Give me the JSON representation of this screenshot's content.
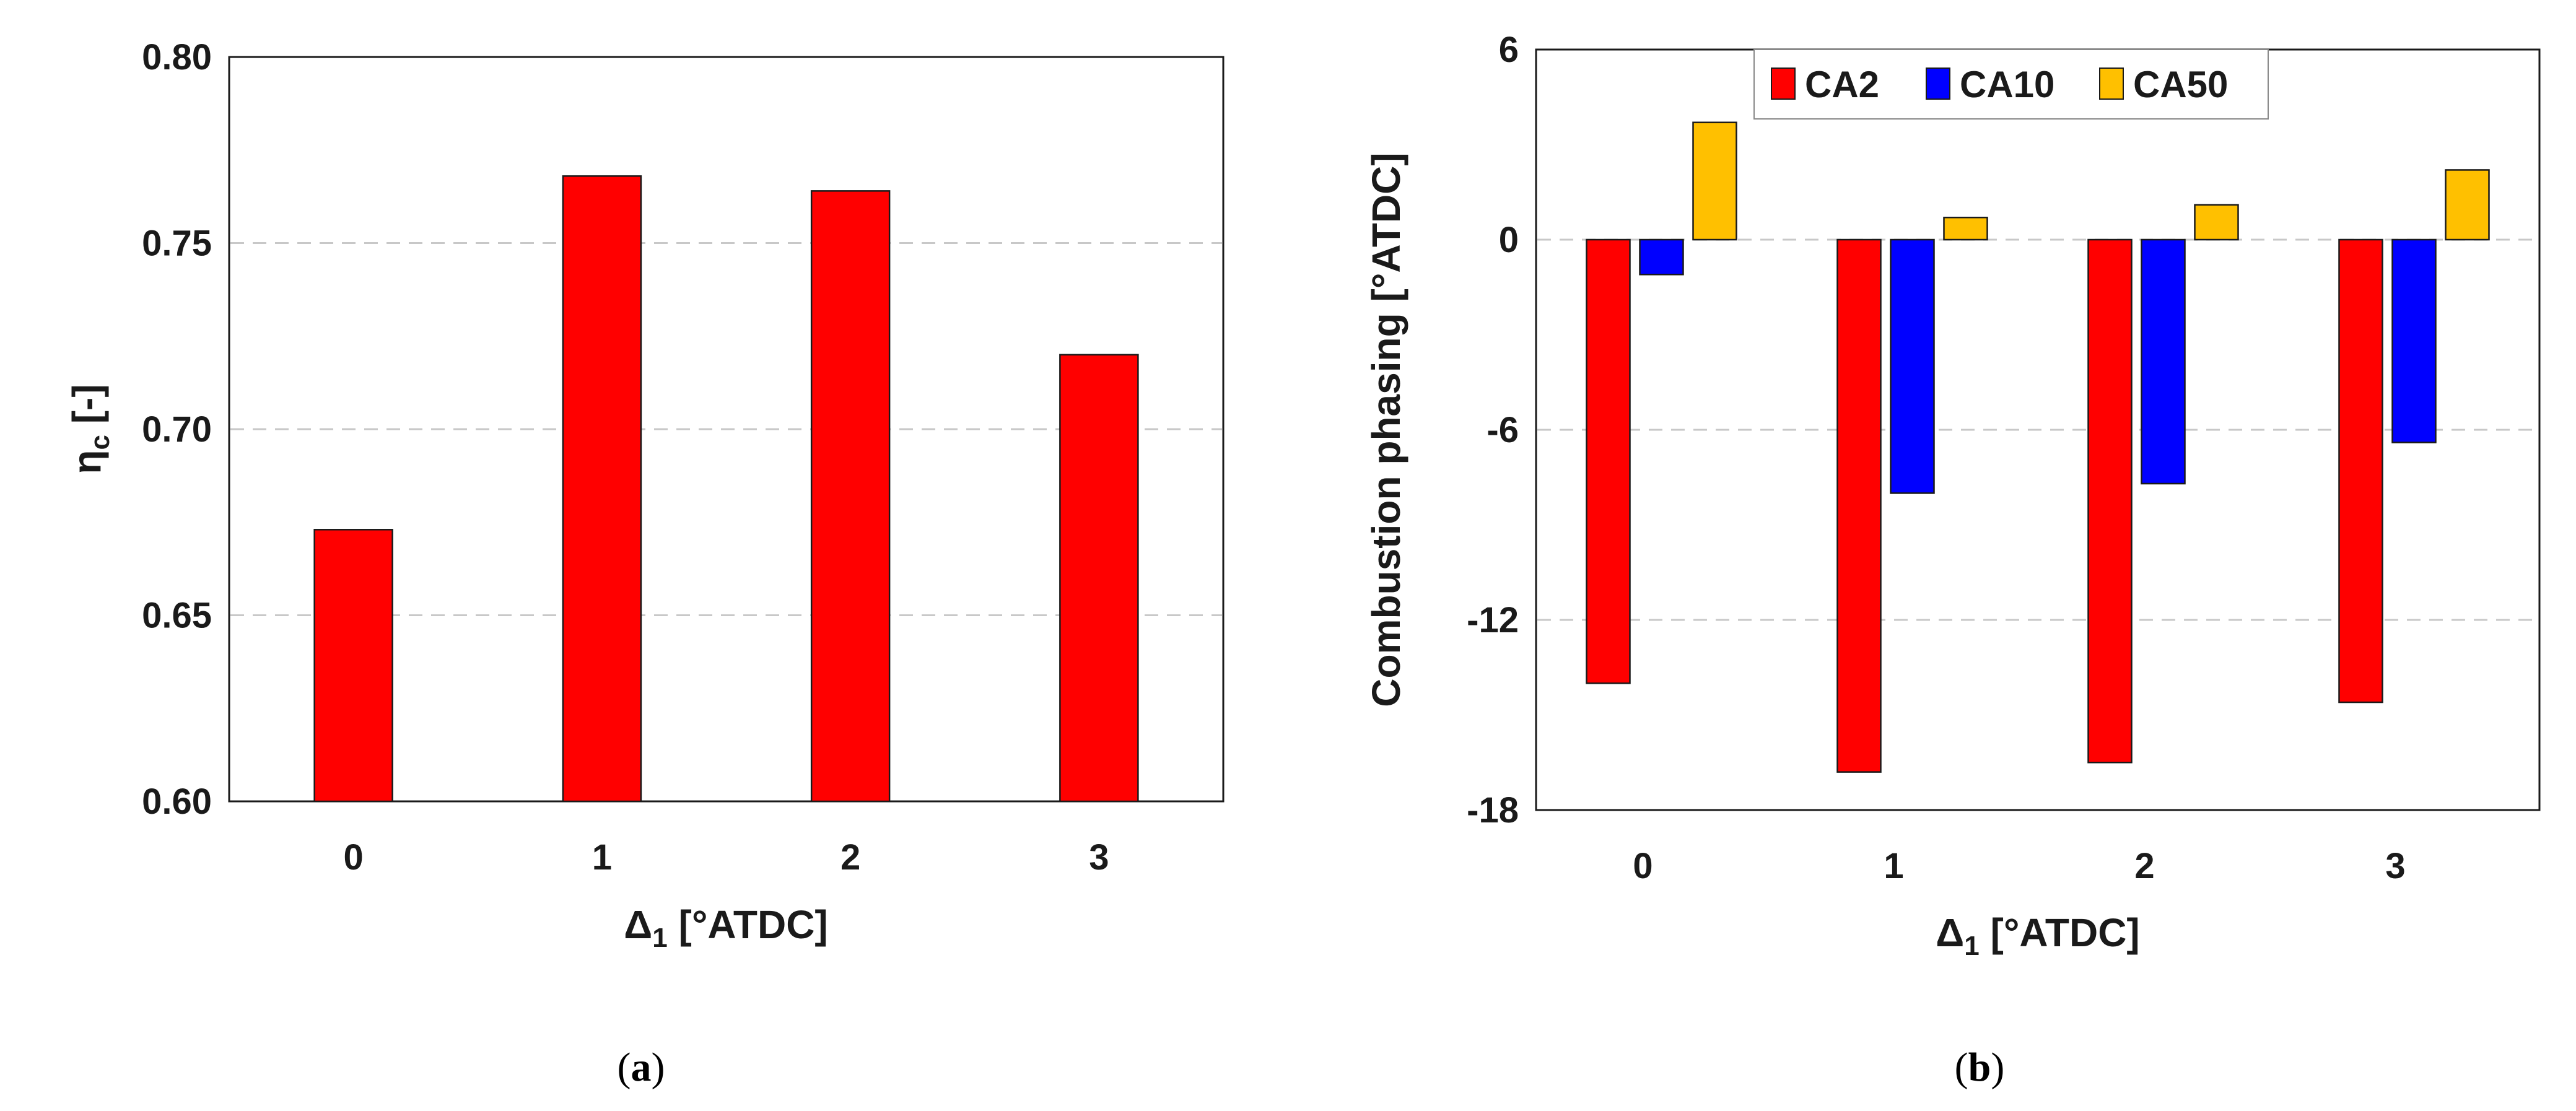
{
  "chart_data": [
    {
      "type": "bar",
      "panel": "a",
      "caption": {
        "open": "(",
        "letter": "a",
        "close": ")"
      },
      "categories": [
        "0",
        "1",
        "2",
        "3"
      ],
      "series": [
        {
          "name": "ηc",
          "color": "#ff0000",
          "values": [
            0.673,
            0.768,
            0.764,
            0.72
          ]
        }
      ],
      "ylim": [
        0.6,
        0.8
      ],
      "yticks": [
        "0.60",
        "0.65",
        "0.70",
        "0.75",
        "0.80"
      ],
      "xlabel": {
        "main": "Δ",
        "sub": "1",
        "rest": " [°ATDC]"
      },
      "ylabel": {
        "main": "η",
        "sub": "c",
        "rest": " [-]"
      },
      "grid": "dashed horizontal"
    },
    {
      "type": "bar",
      "panel": "b",
      "caption": {
        "open": "(",
        "letter": "b",
        "close": ")"
      },
      "categories": [
        "0",
        "1",
        "2",
        "3"
      ],
      "series": [
        {
          "name": "CA2",
          "color": "#ff0000",
          "values": [
            -14.0,
            -16.8,
            -16.5,
            -14.6
          ]
        },
        {
          "name": "CA10",
          "color": "#0000ff",
          "values": [
            -1.1,
            -8.0,
            -7.7,
            -6.4
          ]
        },
        {
          "name": "CA50",
          "color": "#ffc000",
          "values": [
            3.7,
            0.7,
            1.1,
            2.2
          ]
        }
      ],
      "ylim": [
        -18,
        6
      ],
      "yticks": [
        "-18",
        "-12",
        "-6",
        "0",
        "6"
      ],
      "xlabel": {
        "main": "Δ",
        "sub": "1",
        "rest": " [°ATDC]"
      },
      "ylabel": "Combustion phasing [°ATDC]",
      "legend": "top-center",
      "grid": "dashed horizontal"
    }
  ]
}
